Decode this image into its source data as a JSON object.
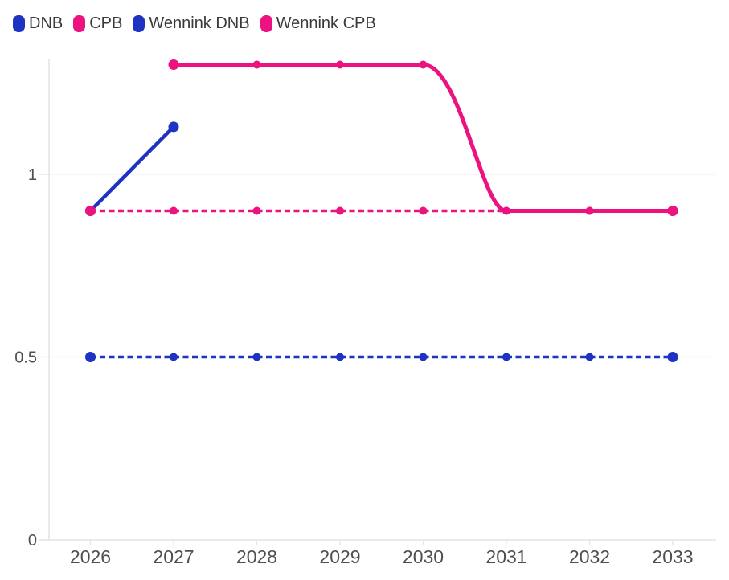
{
  "legend": {
    "items": [
      {
        "label": "DNB",
        "color": "#1e33c2"
      },
      {
        "label": "CPB",
        "color": "#ec1380"
      },
      {
        "label": "Wennink DNB",
        "color": "#1e33c2"
      },
      {
        "label": "Wennink CPB",
        "color": "#ec1380"
      }
    ]
  },
  "colors": {
    "blue": "#1e33c2",
    "pink": "#ec1380",
    "grid": "#f3f3f3",
    "axis": "#e3e3e3",
    "tick": "#e8e8e8",
    "axis_text": "#4f4f4f",
    "legend_text": "#3a3a3a",
    "background": "#ffffff"
  },
  "chart_data": {
    "type": "line",
    "title": "",
    "xlabel": "",
    "ylabel": "",
    "x_years": [
      2026,
      2027,
      2028,
      2029,
      2030,
      2031,
      2032,
      2033
    ],
    "yticks": [
      {
        "value": 0,
        "label": "0"
      },
      {
        "value": 0.5,
        "label": "0.5"
      },
      {
        "value": 1,
        "label": "1"
      }
    ],
    "ylim": [
      0,
      1.315
    ],
    "grid": "horizontal",
    "legend_position": "top-left",
    "series": [
      {
        "name": "DNB",
        "color": "#1e33c2",
        "line": "solid",
        "curve": "linear",
        "width": 4.5,
        "points": [
          {
            "x": 2026,
            "y": 0.9
          },
          {
            "x": 2027,
            "y": 1.13
          }
        ]
      },
      {
        "name": "CPB",
        "color": "#ec1380",
        "line": "solid",
        "curve": "smooth",
        "width": 5,
        "points": [
          {
            "x": 2027,
            "y": 1.3
          },
          {
            "x": 2028,
            "y": 1.3
          },
          {
            "x": 2029,
            "y": 1.3
          },
          {
            "x": 2030,
            "y": 1.3
          },
          {
            "x": 2031,
            "y": 0.9
          },
          {
            "x": 2032,
            "y": 0.9
          },
          {
            "x": 2033,
            "y": 0.9
          }
        ]
      },
      {
        "name": "Wennink DNB",
        "color": "#1e33c2",
        "line": "dashed",
        "curve": "linear",
        "width": 3.6,
        "points": [
          {
            "x": 2026,
            "y": 0.5
          },
          {
            "x": 2027,
            "y": 0.5
          },
          {
            "x": 2028,
            "y": 0.5
          },
          {
            "x": 2029,
            "y": 0.5
          },
          {
            "x": 2030,
            "y": 0.5
          },
          {
            "x": 2031,
            "y": 0.5
          },
          {
            "x": 2032,
            "y": 0.5
          },
          {
            "x": 2033,
            "y": 0.5
          }
        ]
      },
      {
        "name": "Wennink CPB",
        "color": "#ec1380",
        "line": "dashed",
        "curve": "linear",
        "width": 3.6,
        "points": [
          {
            "x": 2026,
            "y": 0.9
          },
          {
            "x": 2027,
            "y": 0.9
          },
          {
            "x": 2028,
            "y": 0.9
          },
          {
            "x": 2029,
            "y": 0.9
          },
          {
            "x": 2030,
            "y": 0.9
          },
          {
            "x": 2031,
            "y": 0.9
          },
          {
            "x": 2032,
            "y": 0.9
          },
          {
            "x": 2033,
            "y": 0.9
          }
        ]
      }
    ],
    "draw_order": [
      0,
      2,
      3,
      1
    ]
  }
}
